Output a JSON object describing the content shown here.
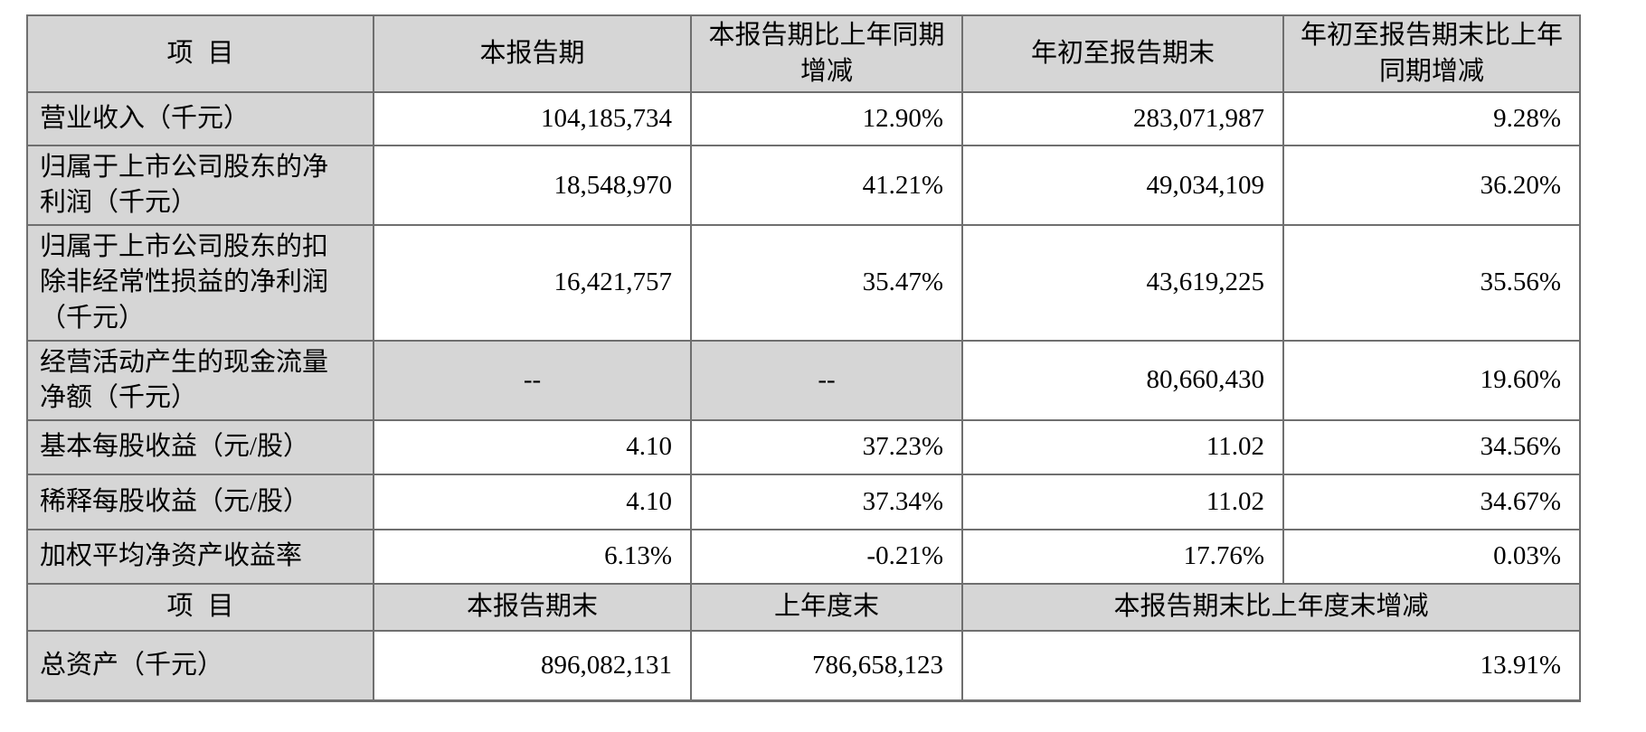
{
  "colors": {
    "page_background": "#ffffff",
    "header_fill": "#d6d6d6",
    "label_fill": "#d6d6d6",
    "border": "#6f6f6f",
    "text": "#000000"
  },
  "table": {
    "description": "主要会计数据和财务指标表",
    "sections": [
      {
        "header": [
          "项目",
          "本报告期",
          "本报告期比上年同期增减",
          "年初至报告期末",
          "年初至报告期末比上年同期增减"
        ],
        "rows": [
          {
            "label": "营业收入（千元）",
            "values": [
              "104,185,734",
              "12.90%",
              "283,071,987",
              "9.28%"
            ]
          },
          {
            "label": "归属于上市公司股东的净利润（千元）",
            "values": [
              "18,548,970",
              "41.21%",
              "49,034,109",
              "36.20%"
            ]
          },
          {
            "label": "归属于上市公司股东的扣除非经常性损益的净利润（千元）",
            "values": [
              "16,421,757",
              "35.47%",
              "43,619,225",
              "35.56%"
            ]
          },
          {
            "label": "经营活动产生的现金流量净额（千元）",
            "values": [
              "--",
              "--",
              "80,660,430",
              "19.60%"
            ],
            "centered_shaded_value_indexes": [
              0,
              1
            ]
          },
          {
            "label": "基本每股收益（元/股）",
            "values": [
              "4.10",
              "37.23%",
              "11.02",
              "34.56%"
            ]
          },
          {
            "label": "稀释每股收益（元/股）",
            "values": [
              "4.10",
              "37.34%",
              "11.02",
              "34.67%"
            ]
          },
          {
            "label": "加权平均净资产收益率",
            "values": [
              "6.13%",
              "-0.21%",
              "17.76%",
              "0.03%"
            ]
          }
        ]
      },
      {
        "header": [
          "项目",
          "本报告期末",
          "上年度末",
          "本报告期末比上年度末增减"
        ],
        "header_colspans": [
          1,
          1,
          1,
          2
        ],
        "rows": [
          {
            "label": "总资产（千元）",
            "values": [
              "896,082,131",
              "786,658,123",
              "13.91%"
            ],
            "value_colspans": [
              1,
              1,
              2
            ]
          }
        ]
      }
    ]
  }
}
